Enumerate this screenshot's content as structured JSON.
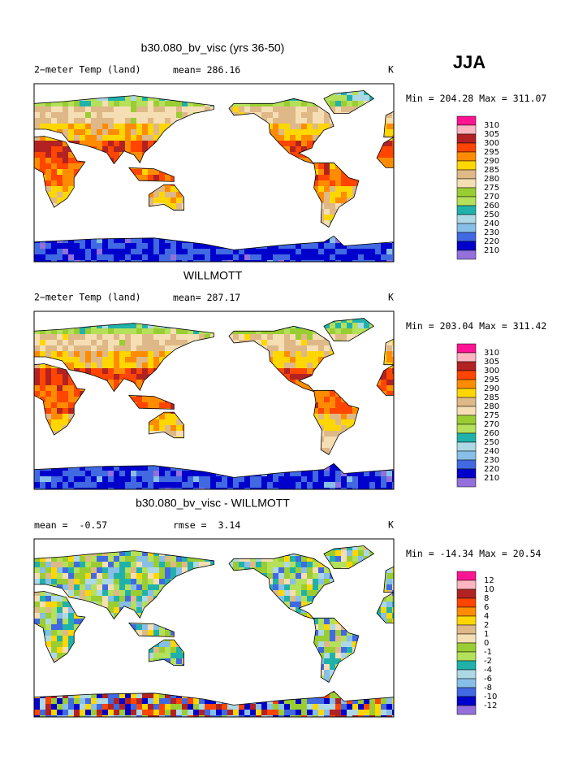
{
  "season": "JJA",
  "colorbar_colors": [
    "#ff1493",
    "#ffb6c1",
    "#b22222",
    "#ff4500",
    "#ff8c00",
    "#ffd700",
    "#deb887",
    "#f5deb3",
    "#9acd32",
    "#b4e05a",
    "#20b2aa",
    "#add8e6",
    "#87bfe8",
    "#4169e1",
    "#0000cd",
    "#9370db"
  ],
  "panels": [
    {
      "title": "b30.080_bv_visc (yrs 36-50)",
      "variable": "2−meter Temp (land)",
      "mean_label": "mean=",
      "mean": 286.16,
      "units": "K",
      "min_label": "Min =",
      "min": 204.28,
      "max_label": "Max =",
      "max": 311.07,
      "colorbar_labels": [
        310,
        305,
        300,
        295,
        290,
        285,
        280,
        275,
        270,
        260,
        250,
        240,
        230,
        220,
        210
      ]
    },
    {
      "title": "WILLMOTT",
      "variable": "2−meter Temp (land)",
      "mean_label": "mean=",
      "mean": 287.17,
      "units": "K",
      "min_label": "Min =",
      "min": 203.04,
      "max_label": "Max =",
      "max": 311.42,
      "colorbar_labels": [
        310,
        305,
        300,
        295,
        290,
        285,
        280,
        275,
        270,
        260,
        250,
        240,
        230,
        220,
        210
      ]
    },
    {
      "title": "b30.080_bv_visc - WILLMOTT",
      "mean_label": "mean =",
      "mean": -0.57,
      "rmse_label": "rmse =",
      "rmse": 3.14,
      "units": "K",
      "min_label": "Min =",
      "min": -14.34,
      "max_label": "Max =",
      "max": 20.54,
      "colorbar_labels": [
        12,
        10,
        8,
        6,
        4,
        2,
        1,
        0,
        -1,
        -2,
        -4,
        -6,
        -8,
        -10,
        -12
      ]
    }
  ]
}
